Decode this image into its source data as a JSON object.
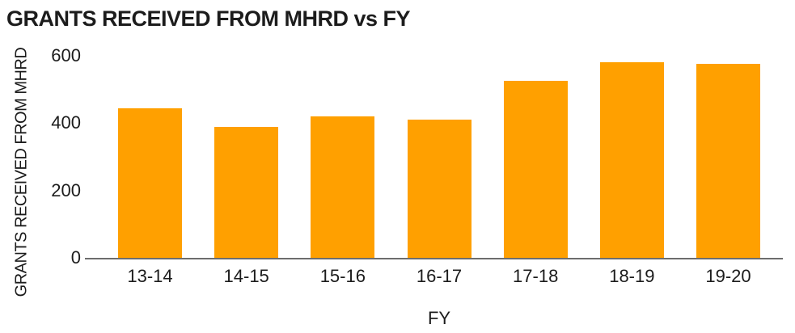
{
  "title": "GRANTS RECEIVED FROM MHRD vs FY",
  "chart_data": {
    "type": "bar",
    "categories": [
      "13-14",
      "14-15",
      "15-16",
      "16-17",
      "17-18",
      "18-19",
      "19-20"
    ],
    "values": [
      445,
      390,
      420,
      410,
      525,
      580,
      575
    ],
    "title": "GRANTS RECEIVED FROM MHRD vs FY",
    "xlabel": "FY",
    "ylabel": "GRANTS RECEIVED FROM MHRD",
    "yticks": [
      0,
      200,
      400,
      600
    ],
    "ylim": [
      0,
      600
    ],
    "grid": false,
    "legend": false,
    "bar_color": "#FFA000",
    "axis_line_color": "#6d6d6d",
    "text_color": "#1c1c1c",
    "background_color": "#ffffff"
  }
}
